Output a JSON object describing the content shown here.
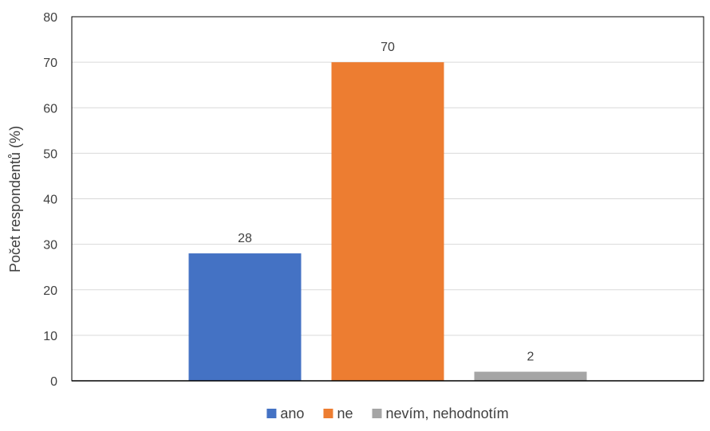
{
  "chart_data": {
    "type": "bar",
    "title": "",
    "xlabel": "",
    "ylabel": "Počet respondentů (%)",
    "ylim": [
      0,
      80
    ],
    "yticks": [
      0,
      10,
      20,
      30,
      40,
      50,
      60,
      70,
      80
    ],
    "grid": true,
    "legend_position": "bottom",
    "series": [
      {
        "name": "ano",
        "values": [
          28
        ],
        "color": "#4472C4"
      },
      {
        "name": "ne",
        "values": [
          70
        ],
        "color": "#ED7D31"
      },
      {
        "name": "nevím, nehodnotím",
        "values": [
          2
        ],
        "color": "#A5A5A5"
      }
    ]
  }
}
